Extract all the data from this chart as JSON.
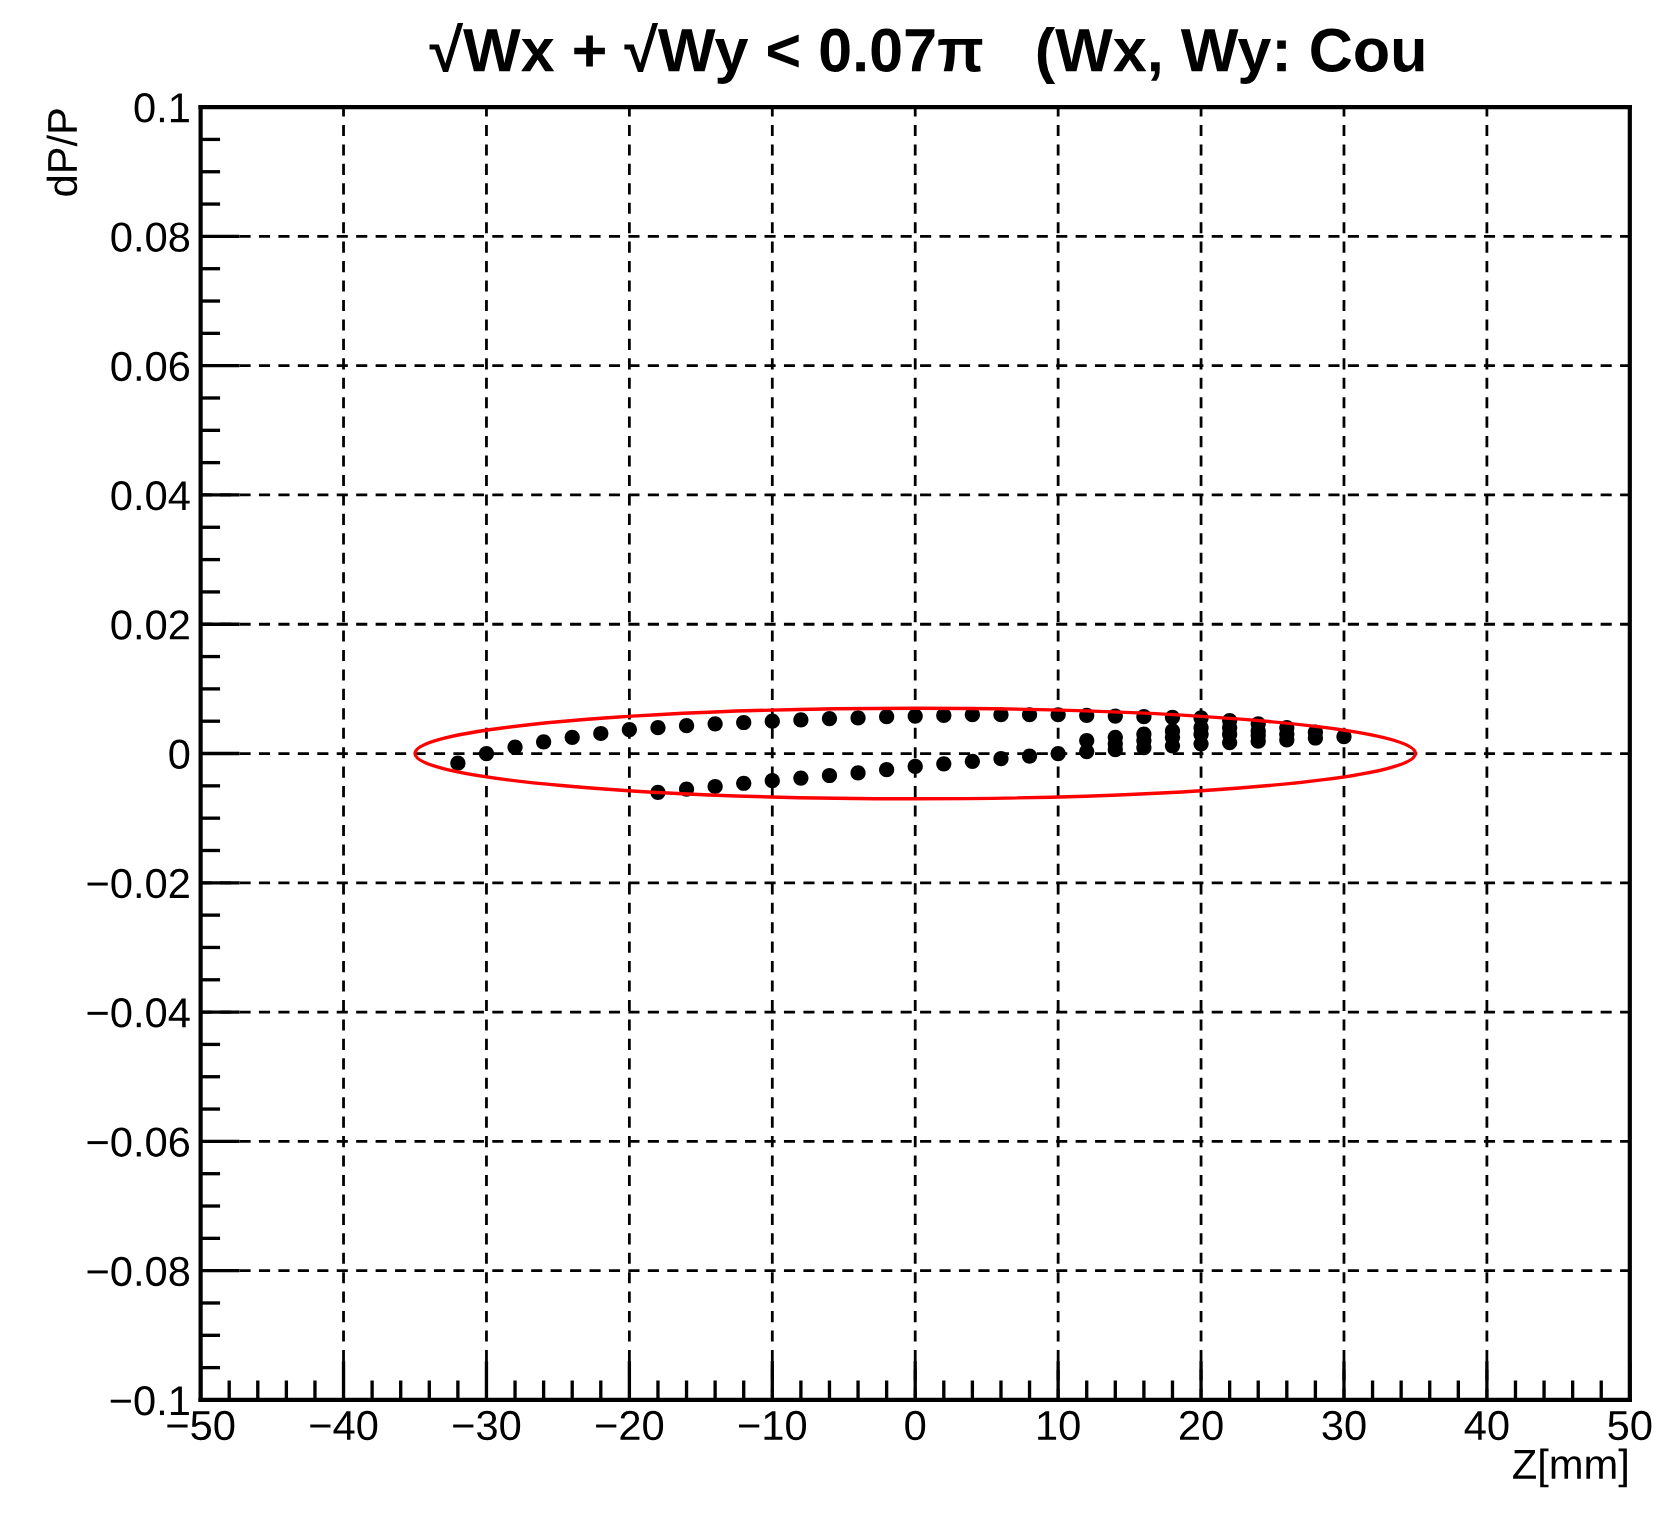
{
  "chart_data": {
    "type": "scatter",
    "title": "√Wx + √Wy < 0.07π   (Wx, Wy: Cou",
    "xlabel": "Z[mm]",
    "ylabel": "dP/P",
    "xlim": [
      -50,
      50
    ],
    "ylim": [
      -0.1,
      0.1
    ],
    "xticks": [
      {
        "value": -50,
        "label": "−50"
      },
      {
        "value": -40,
        "label": "−40"
      },
      {
        "value": -30,
        "label": "−30"
      },
      {
        "value": -20,
        "label": "−20"
      },
      {
        "value": -10,
        "label": "−10"
      },
      0,
      10,
      20,
      30,
      40,
      50
    ],
    "yticks": [
      {
        "value": -0.1,
        "label": "−0.1"
      },
      {
        "value": -0.08,
        "label": "−0.08"
      },
      {
        "value": -0.06,
        "label": "−0.06"
      },
      {
        "value": -0.04,
        "label": "−0.04"
      },
      {
        "value": -0.02,
        "label": "−0.02"
      },
      0,
      0.02,
      0.04,
      0.06,
      0.08,
      0.1
    ],
    "grid": true,
    "marker": "circle",
    "series": [
      {
        "color": "#000000",
        "x": [
          -32,
          -30,
          -28,
          -26,
          -24,
          -22,
          -20,
          -18,
          -16,
          -14,
          -12,
          -10,
          -8,
          -6,
          -4,
          -2,
          0,
          2,
          4,
          6,
          8,
          10,
          12,
          14,
          16,
          18,
          20,
          22,
          24,
          26,
          28,
          30,
          -18,
          -16,
          -14,
          -12,
          -10,
          -8,
          -6,
          -4,
          -2,
          0,
          2,
          4,
          6,
          8,
          10,
          12,
          14,
          16,
          18,
          20,
          22,
          24,
          26,
          28,
          12,
          14,
          14,
          16,
          16,
          18,
          18,
          20,
          20,
          22,
          22,
          24,
          24,
          26
        ],
        "values": [
          -0.0015,
          0.0,
          0.001,
          0.0018,
          0.0025,
          0.0031,
          0.0037,
          0.004,
          0.0043,
          0.0046,
          0.0048,
          0.005,
          0.0052,
          0.0054,
          0.0055,
          0.0057,
          0.0058,
          0.0059,
          0.006,
          0.006,
          0.006,
          0.006,
          0.0059,
          0.0058,
          0.0057,
          0.0056,
          0.0055,
          0.0051,
          0.0046,
          0.004,
          0.0033,
          0.0026,
          -0.006,
          -0.0055,
          -0.0051,
          -0.0046,
          -0.0042,
          -0.0038,
          -0.0034,
          -0.003,
          -0.0025,
          -0.002,
          -0.0016,
          -0.0012,
          -0.0008,
          -0.0004,
          0.0,
          0.0003,
          0.0006,
          0.0009,
          0.0012,
          0.0015,
          0.0017,
          0.0019,
          0.0021,
          0.0024,
          0.002,
          0.0025,
          0.0015,
          0.003,
          0.002,
          0.0035,
          0.0025,
          0.004,
          0.003,
          0.004,
          0.003,
          0.0035,
          0.0028,
          0.003
        ]
      }
    ]
  }
}
